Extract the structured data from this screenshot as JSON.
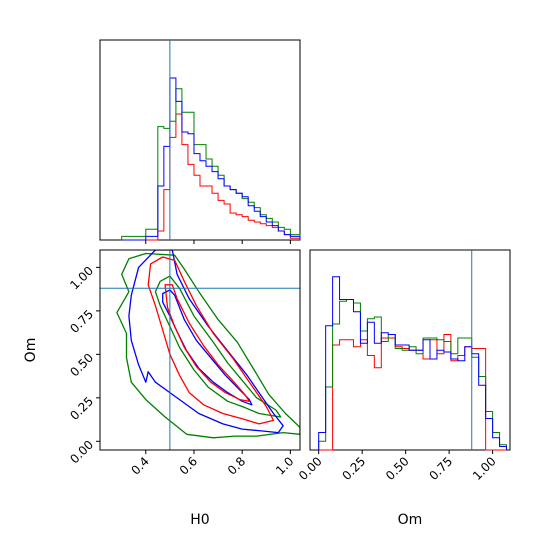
{
  "colors": {
    "red": "#ff0000",
    "green": "#008000",
    "blue": "#0000ff",
    "truth": "#1f77b4"
  },
  "chart_data": {
    "type": "corner",
    "params": [
      "H0",
      "Om"
    ],
    "truths": {
      "H0": 0.5,
      "Om": 0.88
    },
    "series_colors": [
      "#ff0000",
      "#008000",
      "#0000ff"
    ],
    "hist_H0": {
      "xlim": [
        0.21,
        1.04
      ],
      "bins": [
        0.3,
        0.4,
        0.45,
        0.475,
        0.5,
        0.525,
        0.55,
        0.575,
        0.6,
        0.625,
        0.65,
        0.675,
        0.7,
        0.725,
        0.75,
        0.775,
        0.8,
        0.825,
        0.85,
        0.875,
        0.9,
        0.925,
        0.95,
        0.975,
        1.0,
        1.04
      ],
      "series": [
        {
          "color": "red",
          "counts": [
            0,
            0,
            0.05,
            0.28,
            0.57,
            0.7,
            0.53,
            0.42,
            0.36,
            0.3,
            0.3,
            0.26,
            0.22,
            0.2,
            0.15,
            0.14,
            0.13,
            0.11,
            0.1,
            0.09,
            0.08,
            0.07,
            0.05,
            0.03,
            0.01
          ]
        },
        {
          "color": "green",
          "counts": [
            0.02,
            0.06,
            0.63,
            0.62,
            0.66,
            0.84,
            0.71,
            0.71,
            0.53,
            0.53,
            0.45,
            0.41,
            0.36,
            0.3,
            0.28,
            0.26,
            0.23,
            0.21,
            0.18,
            0.14,
            0.12,
            0.1,
            0.07,
            0.06,
            0.03
          ]
        },
        {
          "color": "blue",
          "counts": [
            0,
            0.02,
            0.3,
            0.52,
            0.9,
            0.77,
            0.6,
            0.59,
            0.48,
            0.44,
            0.41,
            0.38,
            0.34,
            0.3,
            0.28,
            0.26,
            0.24,
            0.19,
            0.16,
            0.13,
            0.1,
            0.08,
            0.05,
            0.03,
            0.02
          ]
        }
      ]
    },
    "hist_Om": {
      "xlim": [
        -0.05,
        1.1
      ],
      "xticks": [
        0.0,
        0.25,
        0.5,
        0.75,
        1.0
      ],
      "xtick_labels": [
        "0.00",
        "0.25",
        "0.50",
        "0.75",
        "1.00"
      ],
      "xlabel": "Om",
      "bins": [
        0.0,
        0.04,
        0.08,
        0.12,
        0.16,
        0.2,
        0.24,
        0.28,
        0.32,
        0.36,
        0.4,
        0.44,
        0.48,
        0.52,
        0.56,
        0.6,
        0.64,
        0.68,
        0.72,
        0.76,
        0.8,
        0.84,
        0.88,
        0.92,
        0.96,
        1.0,
        1.04,
        1.08
      ],
      "series": [
        {
          "color": "red",
          "counts": [
            0,
            0,
            0.6,
            0.63,
            0.63,
            0.59,
            0.63,
            0.54,
            0.47,
            0.64,
            0.64,
            0.59,
            0.58,
            0.57,
            0.57,
            0.52,
            0.63,
            0.55,
            0.66,
            0.51,
            0.54,
            0.59,
            0.58,
            0.58,
            0,
            0,
            0
          ]
        },
        {
          "color": "green",
          "counts": [
            0.05,
            0.36,
            0.72,
            0.85,
            0.86,
            0.84,
            0.68,
            0.75,
            0.76,
            0.62,
            0.66,
            0.58,
            0.57,
            0.59,
            0.55,
            0.64,
            0.64,
            0.63,
            0.62,
            0.55,
            0.64,
            0.64,
            0.53,
            0.42,
            0.22,
            0.1,
            0.03
          ]
        },
        {
          "color": "blue",
          "counts": [
            0.1,
            0.71,
            0.99,
            0.86,
            0.86,
            0.79,
            0.61,
            0.73,
            0.61,
            0.67,
            0.66,
            0.6,
            0.6,
            0.57,
            0.57,
            0.63,
            0.52,
            0.57,
            0.56,
            0.52,
            0.51,
            0.59,
            0.55,
            0.37,
            0.18,
            0.07,
            0.02
          ]
        }
      ]
    },
    "joint": {
      "xlim": [
        0.21,
        1.04
      ],
      "ylim": [
        -0.05,
        1.1
      ],
      "xticks": [
        0.4,
        0.6,
        0.8,
        1.0
      ],
      "xtick_labels": [
        "0.4",
        "0.6",
        "0.8",
        "1.0"
      ],
      "yticks": [
        0.0,
        0.25,
        0.5,
        0.75,
        1.0
      ],
      "ytick_labels": [
        "0.00",
        "0.25",
        "0.50",
        "0.75",
        "1.00"
      ],
      "xlabel": "H0",
      "ylabel": "Om",
      "contours": [
        {
          "color": "green",
          "level": "outer",
          "points": [
            [
              0.33,
              1.05
            ],
            [
              0.4,
              1.08
            ],
            [
              0.52,
              1.07
            ],
            [
              0.56,
              0.99
            ],
            [
              0.62,
              0.86
            ],
            [
              0.7,
              0.7
            ],
            [
              0.78,
              0.57
            ],
            [
              0.85,
              0.41
            ],
            [
              0.91,
              0.27
            ],
            [
              0.98,
              0.16
            ],
            [
              1.04,
              0.08
            ],
            [
              1.04,
              0.04
            ],
            [
              0.97,
              0.05
            ],
            [
              0.86,
              0.03
            ],
            [
              0.77,
              0.03
            ],
            [
              0.68,
              0.02
            ],
            [
              0.57,
              0.04
            ],
            [
              0.48,
              0.14
            ],
            [
              0.4,
              0.24
            ],
            [
              0.34,
              0.34
            ],
            [
              0.32,
              0.48
            ],
            [
              0.32,
              0.62
            ],
            [
              0.28,
              0.74
            ],
            [
              0.33,
              0.86
            ],
            [
              0.3,
              0.96
            ],
            [
              0.33,
              1.05
            ]
          ]
        },
        {
          "color": "green",
          "level": "inner",
          "points": [
            [
              0.46,
              0.92
            ],
            [
              0.5,
              0.95
            ],
            [
              0.54,
              0.88
            ],
            [
              0.6,
              0.72
            ],
            [
              0.68,
              0.57
            ],
            [
              0.74,
              0.45
            ],
            [
              0.8,
              0.35
            ],
            [
              0.86,
              0.25
            ],
            [
              0.94,
              0.18
            ],
            [
              0.96,
              0.14
            ],
            [
              0.87,
              0.16
            ],
            [
              0.8,
              0.2
            ],
            [
              0.74,
              0.23
            ],
            [
              0.66,
              0.31
            ],
            [
              0.6,
              0.41
            ],
            [
              0.54,
              0.54
            ],
            [
              0.5,
              0.66
            ],
            [
              0.46,
              0.78
            ],
            [
              0.44,
              0.86
            ],
            [
              0.46,
              0.92
            ]
          ]
        },
        {
          "color": "blue",
          "level": "outer",
          "points": [
            [
              0.37,
              1.0
            ],
            [
              0.44,
              1.1
            ],
            [
              0.51,
              1.1
            ],
            [
              0.53,
              0.96
            ],
            [
              0.58,
              0.82
            ],
            [
              0.66,
              0.66
            ],
            [
              0.74,
              0.52
            ],
            [
              0.82,
              0.38
            ],
            [
              0.88,
              0.26
            ],
            [
              0.93,
              0.16
            ],
            [
              0.97,
              0.09
            ],
            [
              0.95,
              0.05
            ],
            [
              0.88,
              0.06
            ],
            [
              0.8,
              0.07
            ],
            [
              0.72,
              0.1
            ],
            [
              0.62,
              0.16
            ],
            [
              0.52,
              0.26
            ],
            [
              0.44,
              0.34
            ],
            [
              0.41,
              0.4
            ],
            [
              0.4,
              0.34
            ],
            [
              0.37,
              0.44
            ],
            [
              0.34,
              0.58
            ],
            [
              0.33,
              0.72
            ],
            [
              0.34,
              0.84
            ],
            [
              0.37,
              1.0
            ]
          ]
        },
        {
          "color": "blue",
          "level": "inner",
          "points": [
            [
              0.47,
              0.85
            ],
            [
              0.5,
              0.87
            ],
            [
              0.52,
              0.84
            ],
            [
              0.56,
              0.7
            ],
            [
              0.61,
              0.58
            ],
            [
              0.67,
              0.48
            ],
            [
              0.73,
              0.38
            ],
            [
              0.78,
              0.31
            ],
            [
              0.83,
              0.24
            ],
            [
              0.84,
              0.21
            ],
            [
              0.8,
              0.23
            ],
            [
              0.74,
              0.28
            ],
            [
              0.68,
              0.34
            ],
            [
              0.62,
              0.42
            ],
            [
              0.57,
              0.52
            ],
            [
              0.53,
              0.63
            ],
            [
              0.5,
              0.72
            ],
            [
              0.47,
              0.8
            ],
            [
              0.47,
              0.85
            ]
          ]
        },
        {
          "color": "red",
          "level": "outer",
          "points": [
            [
              0.42,
              1.02
            ],
            [
              0.47,
              1.06
            ],
            [
              0.52,
              1.04
            ],
            [
              0.56,
              0.92
            ],
            [
              0.61,
              0.78
            ],
            [
              0.68,
              0.62
            ],
            [
              0.76,
              0.48
            ],
            [
              0.83,
              0.34
            ],
            [
              0.9,
              0.2
            ],
            [
              0.93,
              0.12
            ],
            [
              0.87,
              0.1
            ],
            [
              0.8,
              0.13
            ],
            [
              0.72,
              0.16
            ],
            [
              0.64,
              0.21
            ],
            [
              0.58,
              0.28
            ],
            [
              0.54,
              0.38
            ],
            [
              0.5,
              0.5
            ],
            [
              0.47,
              0.64
            ],
            [
              0.44,
              0.78
            ],
            [
              0.41,
              0.9
            ],
            [
              0.42,
              1.02
            ]
          ]
        },
        {
          "color": "red",
          "level": "inner",
          "points": [
            [
              0.48,
              0.9
            ],
            [
              0.51,
              0.9
            ],
            [
              0.53,
              0.82
            ],
            [
              0.58,
              0.68
            ],
            [
              0.64,
              0.55
            ],
            [
              0.7,
              0.44
            ],
            [
              0.76,
              0.35
            ],
            [
              0.81,
              0.27
            ],
            [
              0.83,
              0.23
            ],
            [
              0.79,
              0.24
            ],
            [
              0.73,
              0.28
            ],
            [
              0.67,
              0.34
            ],
            [
              0.61,
              0.43
            ],
            [
              0.56,
              0.54
            ],
            [
              0.52,
              0.66
            ],
            [
              0.49,
              0.77
            ],
            [
              0.48,
              0.9
            ]
          ]
        }
      ]
    }
  }
}
